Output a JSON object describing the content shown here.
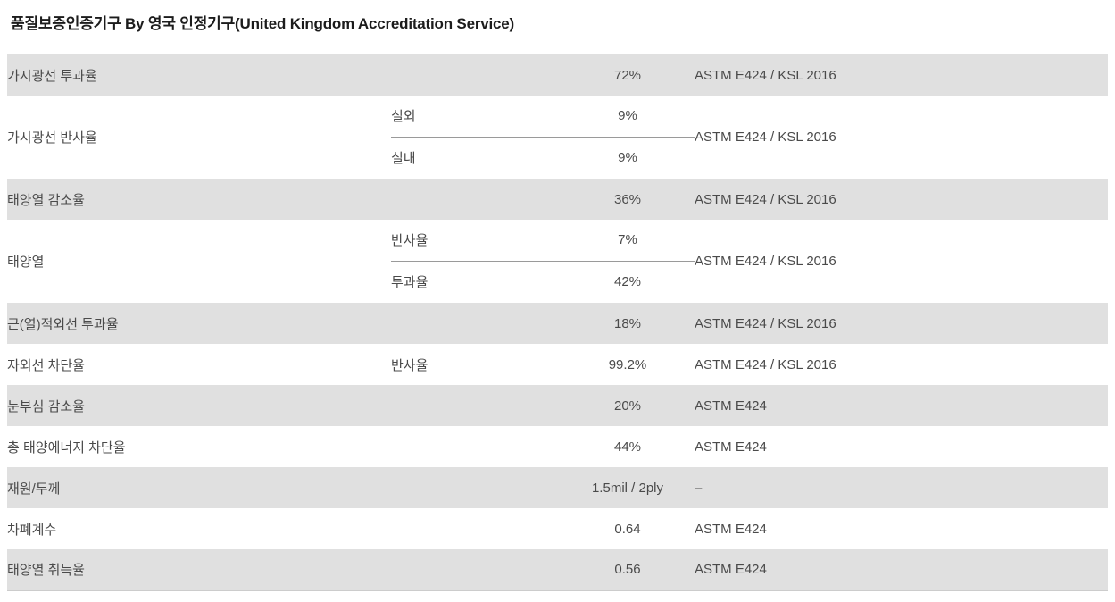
{
  "page": {
    "title": "품질보증인증기구 By 영국 인정기구(United Kingdom Accreditation Service)"
  },
  "table": {
    "rows": [
      {
        "label": "가시광선 투과율",
        "sub": "",
        "value": "72%",
        "standard": "ASTM E424 / KSL 2016"
      },
      {
        "label": "가시광선 반사율",
        "subs": [
          {
            "sub": "실외",
            "value": "9%"
          },
          {
            "sub": "실내",
            "value": "9%"
          }
        ],
        "standard": "ASTM E424 / KSL 2016"
      },
      {
        "label": "태양열 감소율",
        "sub": "",
        "value": "36%",
        "standard": "ASTM E424 / KSL 2016"
      },
      {
        "label": "태양열",
        "subs": [
          {
            "sub": "반사율",
            "value": "7%"
          },
          {
            "sub": "투과율",
            "value": "42%"
          }
        ],
        "standard": "ASTM E424 / KSL 2016"
      },
      {
        "label": "근(열)적외선 투과율",
        "sub": "",
        "value": "18%",
        "standard": "ASTM E424 / KSL 2016"
      },
      {
        "label": "자외선 차단율",
        "sub": "반사율",
        "value": "99.2%",
        "standard": "ASTM E424 / KSL 2016"
      },
      {
        "label": "눈부심 감소율",
        "sub": "",
        "value": "20%",
        "standard": "ASTM E424"
      },
      {
        "label": "총 태양에너지 차단율",
        "sub": "",
        "value": "44%",
        "standard": "ASTM E424"
      },
      {
        "label": "재원/두께",
        "sub": "",
        "value": "1.5mil / 2ply",
        "standard": "–"
      },
      {
        "label": "차폐계수",
        "sub": "",
        "value": "0.64",
        "standard": "ASTM E424"
      },
      {
        "label": "태양열 취득율",
        "sub": "",
        "value": "0.56",
        "standard": "ASTM E424"
      }
    ]
  }
}
